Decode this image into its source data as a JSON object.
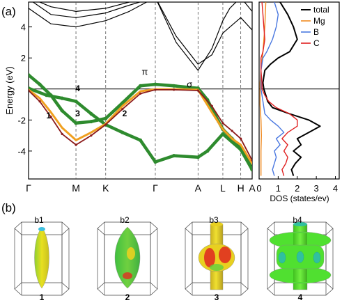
{
  "panels": {
    "a_label": "(a)",
    "b_label": "(b)"
  },
  "chart_data": [
    {
      "type": "line",
      "panel": "a",
      "ylabel": "Energy (eV)",
      "ylim": [
        -5.8,
        5.6
      ],
      "yticks": [
        -4,
        -2,
        2,
        4
      ],
      "fermi_level": 0,
      "kpoints": [
        "Γ",
        "M",
        "K",
        "Γ",
        "A",
        "L",
        "H",
        "A"
      ],
      "kpoint_positions": [
        0,
        0.212,
        0.345,
        0.567,
        0.758,
        0.869,
        0.949,
        1.0
      ],
      "annotations": [
        {
          "text": "π",
          "x": 0.52,
          "y": 0.9
        },
        {
          "text": "σ",
          "x": 0.72,
          "y": 0.1
        },
        {
          "text": "1",
          "x": 0.09,
          "y": -1.9
        },
        {
          "text": "2",
          "x": 0.43,
          "y": -1.75
        },
        {
          "text": "3",
          "x": 0.22,
          "y": -1.75
        },
        {
          "text": "4",
          "x": 0.22,
          "y": -0.15
        }
      ],
      "band_colors": {
        "green": "#2e8b2e",
        "orange": "#f0a020",
        "darkred": "#8b1a1a",
        "black": "#000000"
      },
      "series": [
        {
          "color": "green",
          "x": [
            0,
            0.05,
            0.1,
            0.15,
            0.212,
            0.28,
            0.345,
            0.42,
            0.5,
            0.567,
            0.65,
            0.758,
            0.8,
            0.85,
            0.869,
            0.91,
            0.949,
            0.98,
            1.0
          ],
          "y": [
            0.9,
            0.3,
            -0.4,
            -1.4,
            -2.2,
            -2.1,
            -1.9,
            -0.9,
            0.2,
            0.3,
            0.2,
            0.05,
            -0.7,
            -2.1,
            -2.6,
            -3.2,
            -3.8,
            -4.6,
            -5.2
          ]
        },
        {
          "color": "green",
          "x": [
            0,
            0.08,
            0.15,
            0.212,
            0.28,
            0.345,
            0.42,
            0.5,
            0.567,
            0.65,
            0.758,
            0.8,
            0.869,
            0.949,
            1.0
          ],
          "y": [
            0.05,
            -0.4,
            -0.6,
            -0.8,
            -1.6,
            -2.3,
            -2.8,
            -3.3,
            -4.7,
            -4.3,
            -4.4,
            -4.0,
            -2.9,
            -3.9,
            -5.2
          ]
        },
        {
          "color": "darkred",
          "x": [
            0,
            0.05,
            0.1,
            0.15,
            0.212,
            0.28,
            0.345,
            0.42,
            0.5,
            0.567,
            0.65,
            0.758,
            0.82,
            0.869,
            0.91,
            0.949,
            1.0
          ],
          "y": [
            -0.1,
            -0.8,
            -1.8,
            -2.9,
            -3.6,
            -3.0,
            -2.3,
            -1.3,
            -0.3,
            -0.05,
            -0.05,
            -0.1,
            -1.1,
            -2.2,
            -2.7,
            -3.2,
            -4.6
          ]
        },
        {
          "color": "orange",
          "x": [
            0,
            0.05,
            0.1,
            0.15,
            0.212,
            0.28,
            0.345,
            0.42,
            0.5,
            0.567,
            0.65,
            0.758,
            0.82,
            0.869,
            0.91,
            0.949,
            1.0
          ],
          "y": [
            -0.05,
            -0.6,
            -1.5,
            -2.5,
            -3.3,
            -2.8,
            -2.25,
            -1.1,
            -0.15,
            -0.02,
            -0.02,
            -0.05,
            -1.5,
            -2.6,
            -3.2,
            -3.6,
            -4.8
          ]
        },
        {
          "color": "black",
          "x": [
            0,
            0.1,
            0.212,
            0.345,
            0.45,
            0.567,
            0.66,
            0.758,
            0.82,
            0.869,
            0.9,
            0.949,
            1.0
          ],
          "y": [
            5.8,
            4.8,
            4.6,
            4.9,
            5.4,
            5.9,
            3.0,
            1.2,
            2.6,
            4.4,
            5.2,
            5.9,
            5.0
          ]
        },
        {
          "color": "black",
          "x": [
            0,
            0.1,
            0.212,
            0.345,
            0.45,
            0.567,
            0.66,
            0.758,
            0.82,
            0.869,
            0.949,
            1.0
          ],
          "y": [
            5.2,
            4.2,
            4.0,
            4.4,
            5.0,
            5.9,
            3.4,
            1.6,
            2.2,
            3.6,
            4.6,
            3.8
          ]
        },
        {
          "color": "black",
          "x": [
            0,
            0.1,
            0.212,
            0.345,
            0.45,
            0.567
          ],
          "y": [
            5.9,
            5.3,
            5.0,
            5.2,
            5.6,
            5.9
          ]
        }
      ]
    },
    {
      "type": "line",
      "panel": "a-dos",
      "xlabel": "DOS (states/ev)",
      "xlim": [
        0,
        4.2
      ],
      "xticks": [
        0,
        1,
        2,
        3,
        4
      ],
      "ylim": [
        -5.8,
        5.6
      ],
      "legend": "top-right",
      "series": [
        {
          "name": "total",
          "color": "#000000",
          "e": [
            5.6,
            4.8,
            4.0,
            3.2,
            2.4,
            2.0,
            1.6,
            1.2,
            0.8,
            0.4,
            0.0,
            -0.4,
            -0.8,
            -1.2,
            -1.6,
            -2.0,
            -2.4,
            -2.8,
            -3.2,
            -3.6,
            -4.0,
            -4.4,
            -4.8,
            -5.2,
            -5.6
          ],
          "dos": [
            1.1,
            1.5,
            1.8,
            2.0,
            1.6,
            1.0,
            0.6,
            0.3,
            0.25,
            0.2,
            0.25,
            0.35,
            0.45,
            0.7,
            1.6,
            2.6,
            3.2,
            2.6,
            2.0,
            2.2,
            1.8,
            2.2,
            1.9,
            1.7,
            1.8
          ]
        },
        {
          "name": "Mg",
          "color": "#f08a20",
          "e": [
            5.6,
            4.0,
            2.4,
            1.2,
            0.4,
            0.0,
            -1.0,
            -2.0,
            -3.0,
            -4.0,
            -5.0,
            -5.6
          ],
          "dos": [
            0.35,
            0.3,
            0.2,
            0.1,
            0.05,
            0.05,
            0.05,
            0.1,
            0.12,
            0.1,
            0.1,
            0.1
          ]
        },
        {
          "name": "B",
          "color": "#4a78e0",
          "e": [
            5.6,
            4.8,
            4.0,
            3.2,
            2.4,
            2.0,
            1.2,
            0.4,
            0.0,
            -0.8,
            -1.6,
            -2.0,
            -2.4,
            -2.8,
            -3.2,
            -3.6,
            -4.0,
            -4.4,
            -4.8,
            -5.2,
            -5.6
          ],
          "dos": [
            0.8,
            1.0,
            0.9,
            0.7,
            0.4,
            0.2,
            0.1,
            0.1,
            0.1,
            0.2,
            0.3,
            0.6,
            1.0,
            1.3,
            0.9,
            1.1,
            0.8,
            0.9,
            0.8,
            0.7,
            0.8
          ]
        },
        {
          "name": "C",
          "color": "#e02020",
          "e": [
            5.6,
            4.8,
            4.0,
            3.2,
            2.4,
            2.0,
            1.2,
            0.4,
            0.0,
            -0.4,
            -0.8,
            -1.2,
            -1.6,
            -2.0,
            -2.4,
            -2.8,
            -3.2,
            -3.6,
            -4.0,
            -4.4,
            -4.8,
            -5.2,
            -5.6
          ],
          "dos": [
            0.15,
            0.2,
            0.25,
            0.3,
            0.2,
            0.1,
            0.1,
            0.15,
            0.15,
            0.3,
            0.5,
            0.9,
            1.6,
            2.0,
            2.0,
            1.5,
            1.2,
            1.5,
            1.3,
            1.5,
            1.4,
            1.2,
            1.3
          ]
        }
      ]
    }
  ],
  "fermi_surfaces": [
    {
      "label": "b1",
      "number": "1",
      "shape": "spindle-thin",
      "colors": [
        "#e8e020",
        "#90d030",
        "#40c0e0"
      ]
    },
    {
      "label": "b2",
      "number": "2",
      "shape": "spindle-wide",
      "colors": [
        "#60d040",
        "#e8d020",
        "#e03020"
      ]
    },
    {
      "label": "b3",
      "number": "3",
      "shape": "cylinder-bulge",
      "colors": [
        "#e8d020",
        "#e03020",
        "#60d040"
      ]
    },
    {
      "label": "b4",
      "number": "4",
      "shape": "tubular-network",
      "colors": [
        "#50e030",
        "#30c0a0",
        "#e8d020"
      ]
    }
  ]
}
